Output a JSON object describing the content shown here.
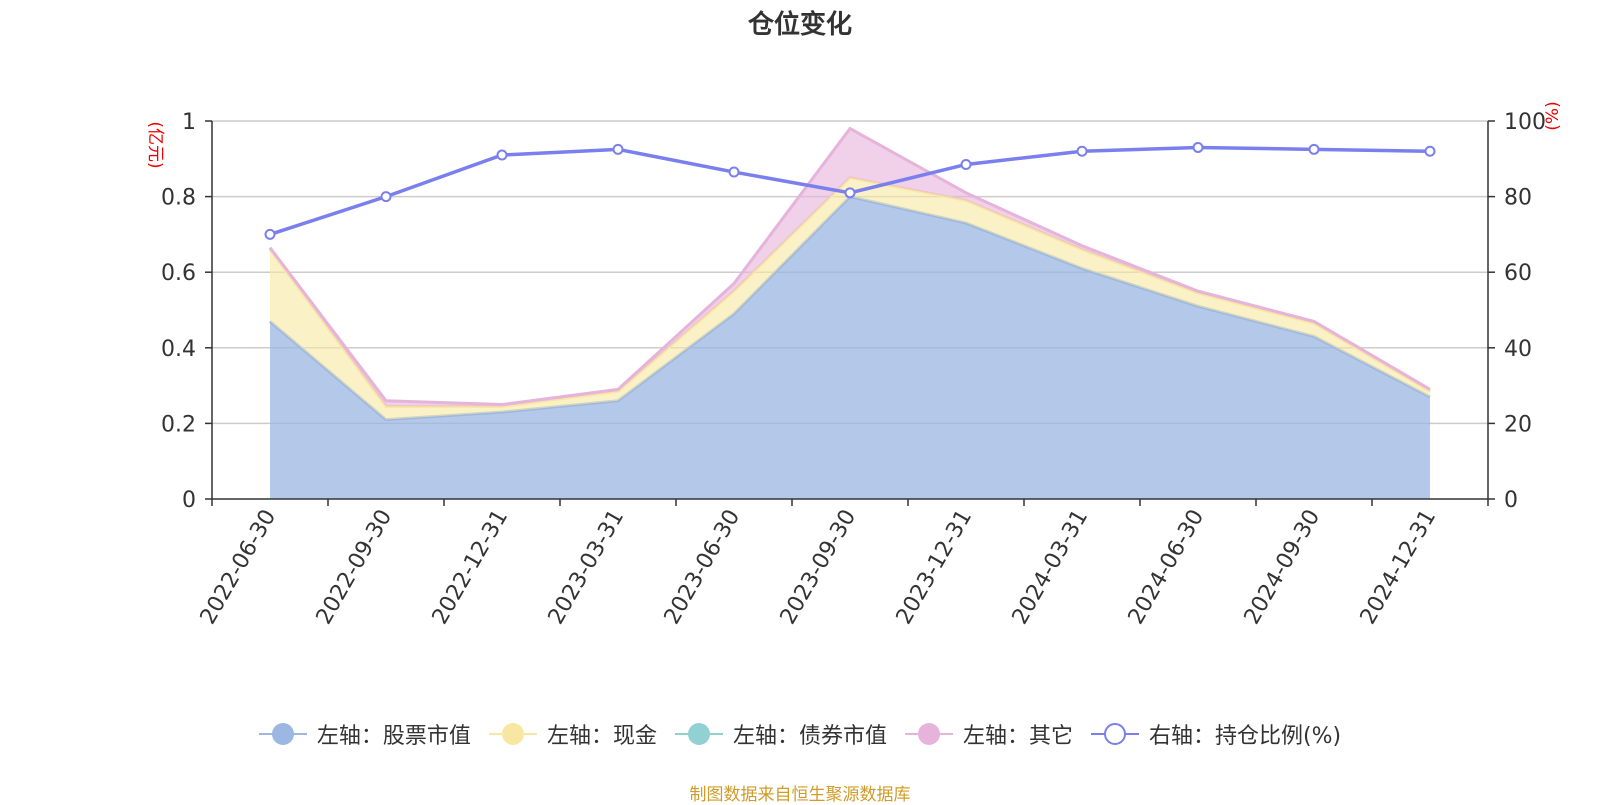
{
  "title": "仓位变化",
  "source": "制图数据来自恒生聚源数据库",
  "colors": {
    "stock": "#9bb7e2",
    "cash": "#f8e7a2",
    "bond": "#91d0d3",
    "other": "#e6b3da",
    "ratio": "#7a7fee",
    "unit": "#ee0000",
    "source": "#d09c29"
  },
  "chart_data": {
    "type": "area",
    "categories": [
      "2022-06-30",
      "2022-09-30",
      "2022-12-31",
      "2023-03-31",
      "2023-06-30",
      "2023-09-30",
      "2023-12-31",
      "2024-03-31",
      "2024-06-30",
      "2024-09-30",
      "2024-12-31"
    ],
    "left_axis": {
      "unit": "(亿元)",
      "min": 0,
      "max": 1,
      "ticks": [
        "0",
        "0.2",
        "0.4",
        "0.6",
        "0.8",
        "1"
      ]
    },
    "right_axis": {
      "unit": "(%)",
      "min": 0,
      "max": 100,
      "ticks": [
        "0",
        "20",
        "40",
        "60",
        "80",
        "100"
      ]
    },
    "grid": true,
    "legend_position": "bottom",
    "stacked_series": [
      {
        "name": "左轴：股票市值",
        "key": "stock",
        "values": [
          0.47,
          0.21,
          0.23,
          0.26,
          0.49,
          0.8,
          0.73,
          0.61,
          0.51,
          0.43,
          0.27
        ]
      },
      {
        "name": "左轴：现金",
        "key": "cash",
        "values": [
          0.19,
          0.035,
          0.015,
          0.025,
          0.06,
          0.05,
          0.06,
          0.05,
          0.035,
          0.035,
          0.015
        ]
      },
      {
        "name": "左轴：债券市值",
        "key": "bond",
        "values": [
          0,
          0,
          0,
          0,
          0,
          0,
          0,
          0,
          0,
          0,
          0
        ]
      },
      {
        "name": "左轴：其它",
        "key": "other",
        "values": [
          0.005,
          0.015,
          0.005,
          0.005,
          0.02,
          0.13,
          0.02,
          0.01,
          0.005,
          0.005,
          0.005
        ]
      }
    ],
    "line_series": {
      "name": "右轴：持仓比例(%)",
      "key": "ratio",
      "values": [
        70,
        80,
        91,
        92.5,
        86.5,
        81,
        88.5,
        92,
        93,
        92.5,
        92
      ]
    }
  }
}
